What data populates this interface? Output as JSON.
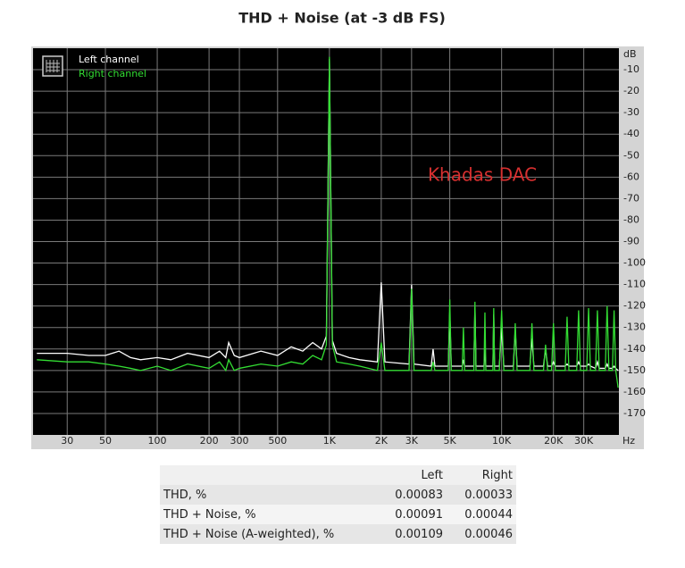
{
  "chart_data": {
    "type": "line",
    "title": "THD + Noise (at -3 dB FS)",
    "annotation": "Khadas DAC",
    "xlabel": "Hz",
    "ylabel": "dB",
    "xscale": "log",
    "grid": true,
    "legend": "upper left",
    "xlim": [
      19,
      48000
    ],
    "ylim": [
      -180,
      0
    ],
    "xticks": [
      30,
      50,
      100,
      200,
      300,
      500,
      {
        "value": 1000,
        "label": "1K"
      },
      {
        "value": 2000,
        "label": "2K"
      },
      {
        "value": 3000,
        "label": "3K"
      },
      {
        "value": 5000,
        "label": "5K"
      },
      {
        "value": 10000,
        "label": "10K"
      },
      {
        "value": 20000,
        "label": "20K"
      },
      {
        "value": 30000,
        "label": "30K"
      }
    ],
    "yticks": [
      -10,
      -20,
      -30,
      -40,
      -50,
      -60,
      -70,
      -80,
      -90,
      -100,
      -110,
      -120,
      -130,
      -140,
      -150,
      -160,
      -170
    ],
    "x": [
      20,
      30,
      40,
      50,
      60,
      70,
      80,
      100,
      120,
      150,
      200,
      230,
      250,
      260,
      280,
      300,
      400,
      500,
      600,
      700,
      800,
      900,
      960,
      1000,
      1040,
      1100,
      1300,
      1500,
      1900,
      2000,
      2100,
      2900,
      3000,
      3100,
      3900,
      4000,
      4100,
      4900,
      5000,
      5100,
      5900,
      6000,
      6100,
      6900,
      7000,
      7100,
      7900,
      8000,
      8100,
      8900,
      9000,
      9100,
      9700,
      10000,
      10300,
      11700,
      12000,
      12300,
      14600,
      15000,
      15400,
      17500,
      18000,
      18500,
      19500,
      20000,
      20500,
      23400,
      24000,
      24600,
      27300,
      28000,
      28700,
      31200,
      32000,
      32800,
      35100,
      36000,
      36900,
      40000,
      41000,
      42000,
      44000,
      45000,
      46000,
      47500
    ],
    "series": [
      {
        "name": "Left channel",
        "color": "#ffffff",
        "values": [
          -142,
          -142,
          -143,
          -143,
          -141,
          -144,
          -145,
          -144,
          -145,
          -142,
          -144,
          -141,
          -144,
          -137,
          -143,
          -144,
          -141,
          -143,
          -139,
          -141,
          -137,
          -140,
          -134,
          -5,
          -136,
          -142,
          -144,
          -145,
          -146,
          -109,
          -146,
          -147,
          -110,
          -147,
          -148,
          -140,
          -148,
          -148,
          -123,
          -148,
          -148,
          -145,
          -148,
          -148,
          -121,
          -148,
          -148,
          -140,
          -148,
          -148,
          -124,
          -148,
          -148,
          -130,
          -148,
          -148,
          -131,
          -148,
          -148,
          -135,
          -148,
          -148,
          -140,
          -148,
          -148,
          -146,
          -148,
          -148,
          -147,
          -148,
          -148,
          -146,
          -148,
          -148,
          -147,
          -148,
          -149,
          -146,
          -149,
          -149,
          -147,
          -149,
          -149,
          -148,
          -149,
          -150
        ]
      },
      {
        "name": "Right channel",
        "color": "#33dd33",
        "values": [
          -145,
          -146,
          -146,
          -147,
          -148,
          -149,
          -150,
          -148,
          -150,
          -147,
          -149,
          -146,
          -150,
          -145,
          -150,
          -149,
          -147,
          -148,
          -146,
          -147,
          -143,
          -145,
          -138,
          -4,
          -138,
          -146,
          -147,
          -148,
          -150,
          -137,
          -150,
          -150,
          -112,
          -150,
          -150,
          -146,
          -150,
          -150,
          -117,
          -150,
          -150,
          -130,
          -150,
          -150,
          -118,
          -150,
          -150,
          -123,
          -150,
          -150,
          -121,
          -150,
          -150,
          -122,
          -150,
          -150,
          -128,
          -150,
          -150,
          -128,
          -150,
          -150,
          -138,
          -150,
          -150,
          -128,
          -150,
          -150,
          -125,
          -150,
          -150,
          -122,
          -150,
          -150,
          -121,
          -150,
          -150,
          -122,
          -150,
          -150,
          -120,
          -150,
          -150,
          -122,
          -150,
          -158
        ]
      }
    ]
  },
  "table": {
    "header": [
      "Left",
      "Right"
    ],
    "rows": [
      {
        "label": "THD, %",
        "values": [
          "0.00083",
          "0.00033"
        ]
      },
      {
        "label": "THD + Noise, %",
        "values": [
          "0.00091",
          "0.00044"
        ]
      },
      {
        "label": "THD + Noise (A-weighted), %",
        "values": [
          "0.00109",
          "0.00046"
        ]
      }
    ]
  }
}
